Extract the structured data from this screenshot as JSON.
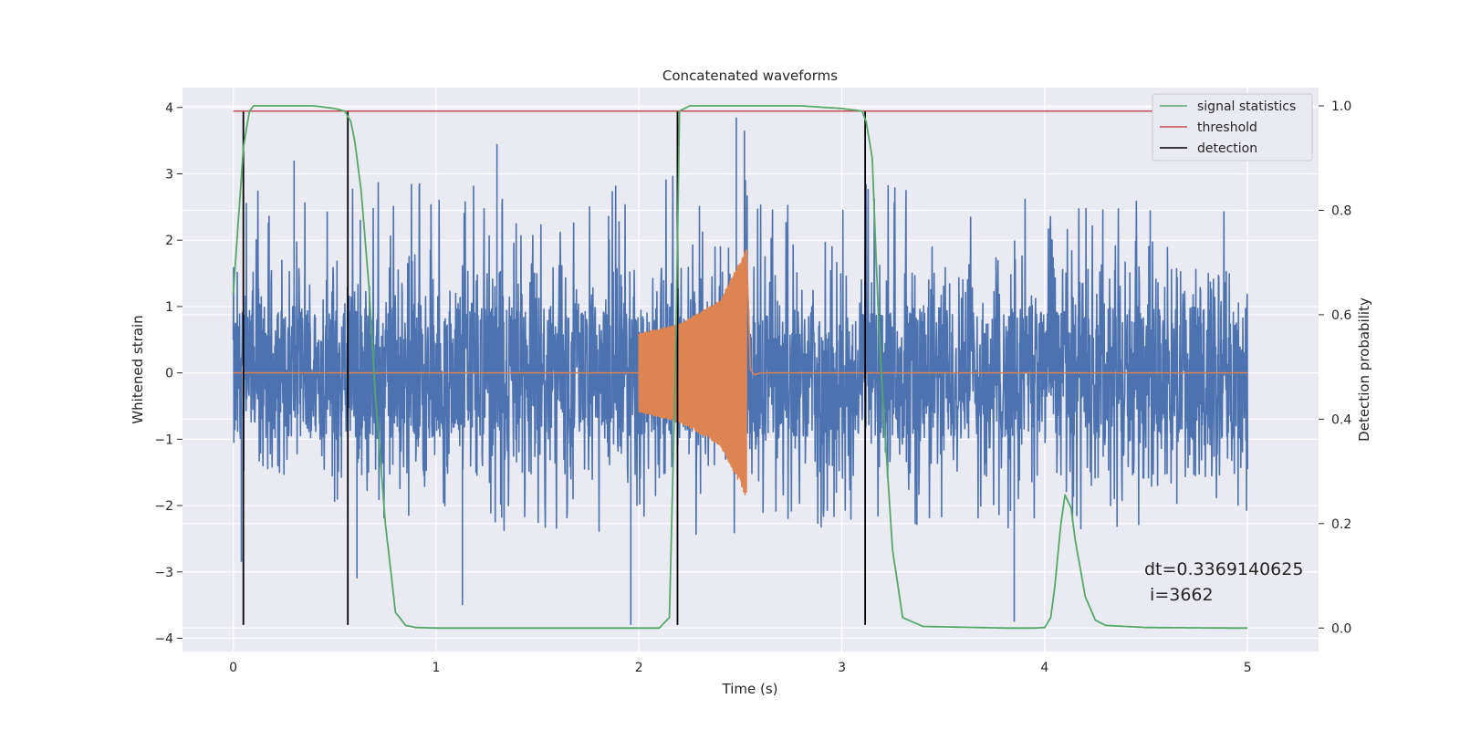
{
  "chart_data": {
    "type": "line",
    "title": "Concatenated waveforms",
    "xlabel": "Time (s)",
    "ylabel": "Whitened strain",
    "y2label": "Detection probability",
    "xlim": [
      -0.25,
      5.35
    ],
    "ylim": [
      -4.2,
      4.3
    ],
    "y2lim": [
      -0.045,
      1.035
    ],
    "xticks": [
      0,
      1,
      2,
      3,
      4,
      5
    ],
    "yticks": [
      -4,
      -3,
      -2,
      -1,
      0,
      1,
      2,
      3,
      4
    ],
    "y2ticks": [
      0.0,
      0.2,
      0.4,
      0.6,
      0.8,
      1.0
    ],
    "grid": true,
    "legend_position": "top-right",
    "colors": {
      "strain": "#4c72b0",
      "injected_signal": "#dd8452",
      "signal_statistics": "#55a868",
      "threshold": "#c44e52",
      "detection": "#000000",
      "plot_background": "#eaeaf2",
      "grid": "#ffffff"
    },
    "series": [
      {
        "legend": "signal statistics",
        "axis": "right",
        "x": [
          0.0,
          0.02,
          0.05,
          0.08,
          0.1,
          0.2,
          0.4,
          0.5,
          0.55,
          0.58,
          0.6,
          0.63,
          0.67,
          0.7,
          0.75,
          0.8,
          0.85,
          0.9,
          1.0,
          1.5,
          2.0,
          2.1,
          2.15,
          2.18,
          2.2,
          2.25,
          2.3,
          2.5,
          2.8,
          3.0,
          3.1,
          3.12,
          3.15,
          3.18,
          3.2,
          3.25,
          3.3,
          3.4,
          3.8,
          3.95,
          4.0,
          4.03,
          4.05,
          4.08,
          4.1,
          4.13,
          4.15,
          4.2,
          4.25,
          4.3,
          4.5,
          4.9,
          5.0
        ],
        "values": [
          0.64,
          0.75,
          0.92,
          0.99,
          1.0,
          1.0,
          1.0,
          0.995,
          0.99,
          0.97,
          0.93,
          0.84,
          0.65,
          0.45,
          0.2,
          0.03,
          0.005,
          0.001,
          0.0,
          0.0,
          0.0,
          0.0,
          0.02,
          0.5,
          0.99,
          1.0,
          1.0,
          1.0,
          1.0,
          0.995,
          0.99,
          0.97,
          0.9,
          0.6,
          0.45,
          0.15,
          0.02,
          0.003,
          0.0,
          0.0,
          0.001,
          0.02,
          0.08,
          0.2,
          0.255,
          0.23,
          0.17,
          0.06,
          0.015,
          0.005,
          0.001,
          0.0,
          0.0
        ]
      },
      {
        "legend": "threshold",
        "axis": "right",
        "x": [
          0.0,
          5.0
        ],
        "values": [
          0.99,
          0.99
        ]
      },
      {
        "legend": "detection",
        "axis": "left",
        "x": [
          0.05,
          0.565,
          2.19,
          3.115
        ],
        "ymin": -3.8,
        "ymax": 3.95
      },
      {
        "legend": "",
        "axis": "left",
        "description_role": "strain",
        "x_range": [
          0.0,
          5.0
        ],
        "envelope": {
          "x": [
            0.0,
            0.5,
            1.0,
            1.5,
            2.0,
            2.2,
            2.5,
            2.55,
            3.0,
            3.5,
            4.0,
            4.5,
            5.0
          ],
          "upper": [
            2.7,
            2.9,
            2.9,
            2.9,
            2.9,
            3.1,
            3.3,
            2.9,
            2.9,
            2.8,
            2.8,
            2.6,
            2.5
          ],
          "lower": [
            -2.3,
            -2.4,
            -2.4,
            -2.4,
            -2.5,
            -2.6,
            -2.6,
            -2.4,
            -2.3,
            -2.3,
            -2.4,
            -2.3,
            -2.2
          ]
        },
        "extreme_spikes": [
          {
            "x": 0.3,
            "y": 3.2
          },
          {
            "x": 0.61,
            "y": -3.1
          },
          {
            "x": 1.13,
            "y": -3.5
          },
          {
            "x": 1.3,
            "y": 3.45
          },
          {
            "x": 1.96,
            "y": -3.8
          },
          {
            "x": 2.19,
            "y": 3.5
          },
          {
            "x": 2.48,
            "y": 3.85
          },
          {
            "x": 2.52,
            "y": 3.65
          },
          {
            "x": 3.85,
            "y": -3.75
          },
          {
            "x": 0.04,
            "y": -2.85
          },
          {
            "x": 4.52,
            "y": 2.45
          }
        ]
      },
      {
        "legend": "",
        "axis": "left",
        "description_role": "injected signal",
        "flat_value": 0.0,
        "x_range": [
          0.0,
          5.0
        ],
        "burst_x": [
          2.0,
          2.2,
          2.4,
          2.5,
          2.53
        ],
        "burst_amplitude": [
          0.6,
          0.75,
          1.1,
          1.7,
          1.9
        ]
      }
    ],
    "annotations": [
      "dt=0.3369140625",
      " i=3662"
    ]
  }
}
